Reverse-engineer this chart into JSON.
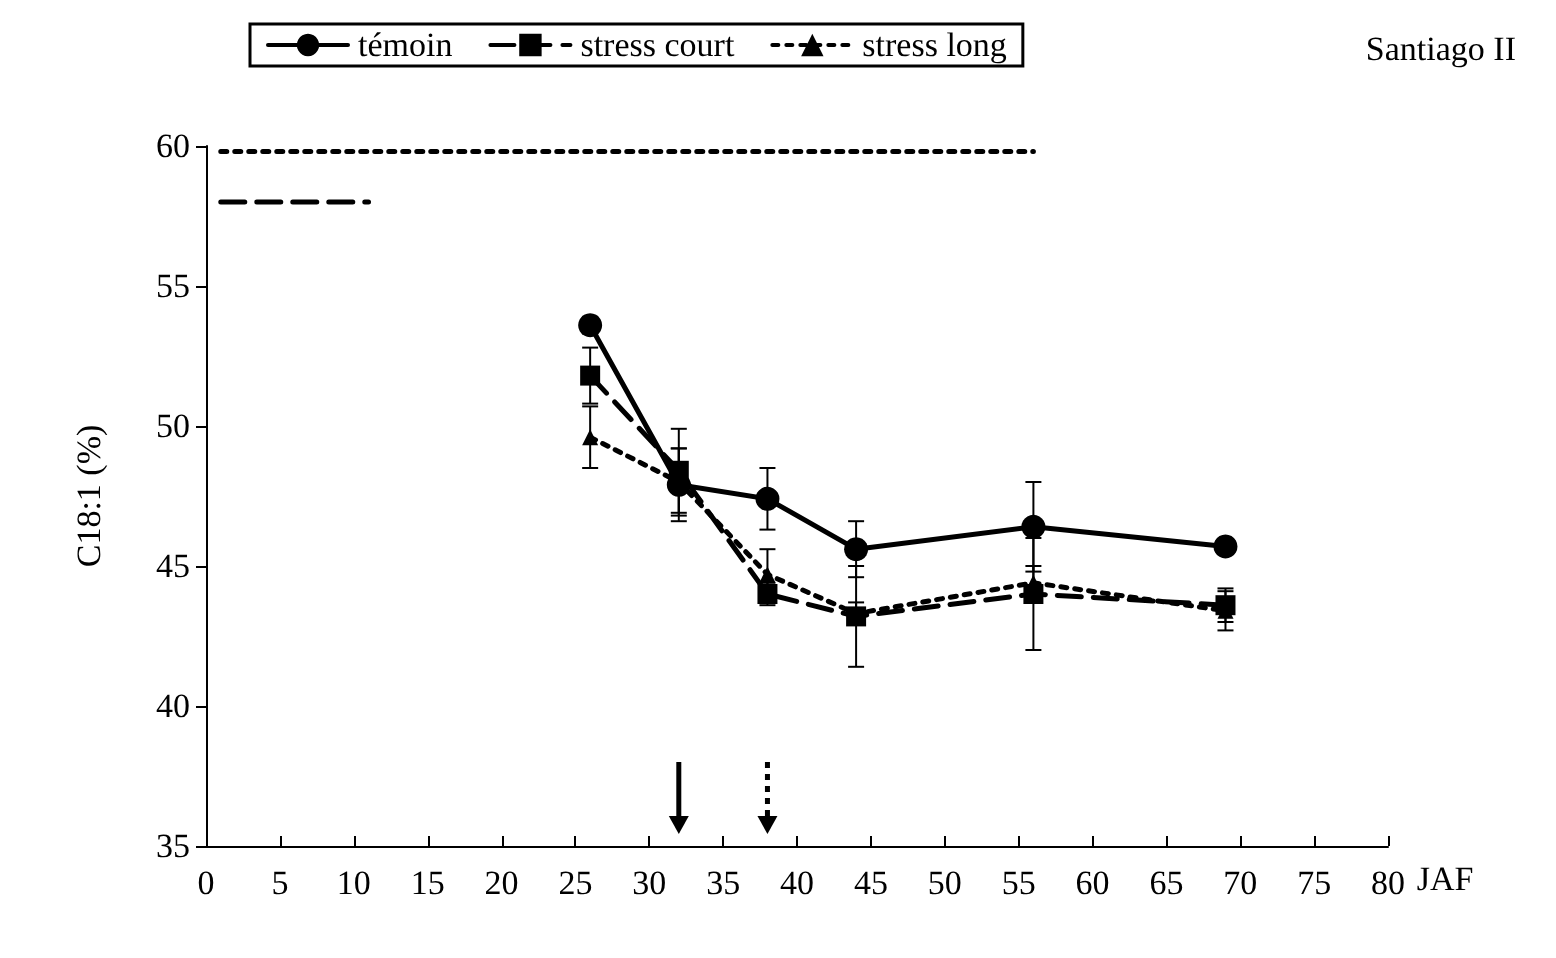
{
  "chart_data": {
    "type": "line",
    "xlabel": "JAF",
    "ylabel": "C18:1 (%)",
    "annotations": [
      "Santiago II"
    ],
    "x": [
      26,
      32,
      38,
      44,
      56,
      69
    ],
    "series": [
      {
        "name": "témoin",
        "color": "#000000",
        "marker": "circle",
        "line_style": "solid",
        "values": [
          53.6,
          47.9,
          47.4,
          45.6,
          46.4,
          45.7
        ],
        "errors": [
          0.3,
          1.3,
          1.1,
          1.0,
          1.6,
          0.2
        ]
      },
      {
        "name": "stress court",
        "color": "#000000",
        "marker": "square",
        "line_style": "dashed",
        "values": [
          51.8,
          48.4,
          44.0,
          43.2,
          44.0,
          43.6
        ],
        "errors": [
          1.0,
          1.5,
          0.4,
          1.8,
          2.0,
          0.6
        ]
      },
      {
        "name": "stress long",
        "color": "#000000",
        "marker": "triangle",
        "line_style": "dotted",
        "values": [
          49.6,
          48.0,
          44.7,
          43.3,
          44.4,
          43.4
        ],
        "errors": [
          1.1,
          1.2,
          0.9,
          0.4,
          0.6,
          0.7
        ]
      },
      {
        "type": "line",
        "color": "#000000",
        "marker": "none",
        "line_style": "dotted",
        "x": [
          1,
          56
        ],
        "values": [
          59.8,
          59.8
        ]
      },
      {
        "type": "line",
        "color": "#000000",
        "marker": "none",
        "line_style": "dashed",
        "x": [
          1,
          11
        ],
        "values": [
          58.0,
          58.0
        ]
      }
    ],
    "xlim": [
      0,
      80
    ],
    "xticks": [
      0,
      5,
      10,
      15,
      20,
      25,
      30,
      35,
      40,
      45,
      50,
      55,
      60,
      65,
      70,
      75,
      80
    ],
    "ylim": [
      35,
      60
    ],
    "yticks": [
      35,
      40,
      45,
      50,
      55,
      60
    ],
    "grid": false,
    "legend": "top"
  }
}
